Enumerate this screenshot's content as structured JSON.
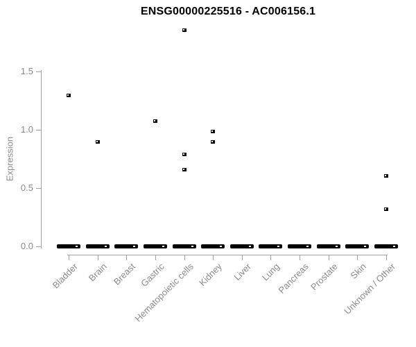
{
  "chart_data": {
    "type": "scatter",
    "title": "ENSG00000225516 - AC006156.1",
    "xlabel": "",
    "ylabel": "Expression",
    "categories": [
      "Bladder",
      "Brain",
      "Breast",
      "Gastric",
      "Hematopoietic cells",
      "Kidney",
      "Liver",
      "Lung",
      "Pancreas",
      "Prostate",
      "Skin",
      "Unknown / Other"
    ],
    "yticks": [
      0.0,
      0.5,
      1.0,
      1.5
    ],
    "ytick_labels": [
      "0.0",
      "0.5",
      "1.0",
      "1.5"
    ],
    "ylim": [
      0,
      1.93
    ],
    "grid": false,
    "legend": "none",
    "marker": "open-square",
    "points": [
      {
        "category": "Bladder",
        "value": 1.3
      },
      {
        "category": "Brain",
        "value": 0.9
      },
      {
        "category": "Gastric",
        "value": 1.08
      },
      {
        "category": "Hematopoietic cells",
        "value": 1.86
      },
      {
        "category": "Hematopoietic cells",
        "value": 0.79
      },
      {
        "category": "Hematopoietic cells",
        "value": 0.66
      },
      {
        "category": "Kidney",
        "value": 0.99
      },
      {
        "category": "Kidney",
        "value": 0.9
      },
      {
        "category": "Unknown / Other",
        "value": 0.61
      },
      {
        "category": "Unknown / Other",
        "value": 0.32
      }
    ],
    "zero_clusters": {
      "value": 0.0,
      "categories": "all",
      "note": "dense overlapping points at expression 0.0 in every category, drawn as a thick black dash"
    },
    "colors": {
      "point": "#000000",
      "axis_line": "#a0a0a0",
      "tick_label": "#8a8a8a",
      "title": "#000000",
      "background": "#ffffff"
    }
  }
}
